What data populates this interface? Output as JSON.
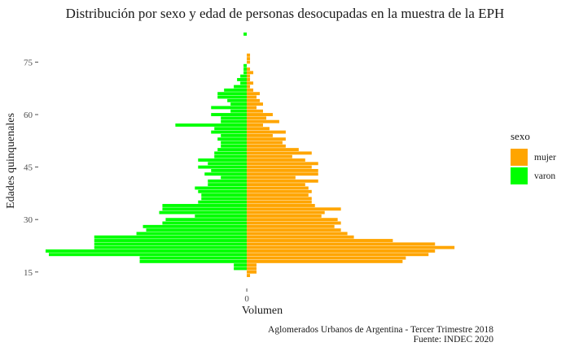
{
  "chart_data": {
    "type": "bar",
    "orientation": "horizontal-population-pyramid",
    "title": "Distribución por sexo y edad de personas desocupadas en la muestra de la EPH",
    "xlabel": "Volumen",
    "ylabel": "Edades quinquenales",
    "y_ticks": [
      15,
      30,
      45,
      60,
      75
    ],
    "x_ticks": [
      0
    ],
    "x_tick_labels": [
      "0"
    ],
    "ylim": [
      11,
      83
    ],
    "xlim": [
      -64,
      74
    ],
    "grid": false,
    "legend_position": "right",
    "legend_title": "sexo",
    "series": [
      {
        "name": "mujer",
        "color": "#FFA500",
        "points": [
          [
            14,
            1
          ],
          [
            15,
            3
          ],
          [
            16,
            3
          ],
          [
            17,
            3
          ],
          [
            18,
            48
          ],
          [
            19,
            49
          ],
          [
            20,
            56
          ],
          [
            21,
            58
          ],
          [
            22,
            64
          ],
          [
            23,
            58
          ],
          [
            24,
            45
          ],
          [
            25,
            33
          ],
          [
            26,
            31
          ],
          [
            27,
            29
          ],
          [
            28,
            27
          ],
          [
            29,
            29
          ],
          [
            30,
            28
          ],
          [
            31,
            23
          ],
          [
            32,
            24
          ],
          [
            33,
            29
          ],
          [
            34,
            21
          ],
          [
            35,
            20
          ],
          [
            36,
            20
          ],
          [
            37,
            19
          ],
          [
            38,
            20
          ],
          [
            39,
            19
          ],
          [
            40,
            18
          ],
          [
            41,
            22
          ],
          [
            42,
            15
          ],
          [
            43,
            22
          ],
          [
            44,
            22
          ],
          [
            45,
            20
          ],
          [
            46,
            22
          ],
          [
            47,
            18
          ],
          [
            48,
            14
          ],
          [
            49,
            20
          ],
          [
            50,
            16
          ],
          [
            51,
            12
          ],
          [
            52,
            11
          ],
          [
            53,
            12
          ],
          [
            54,
            8
          ],
          [
            55,
            12
          ],
          [
            56,
            7
          ],
          [
            57,
            5
          ],
          [
            58,
            10
          ],
          [
            59,
            6
          ],
          [
            60,
            8
          ],
          [
            61,
            5
          ],
          [
            62,
            3
          ],
          [
            63,
            5
          ],
          [
            64,
            4
          ],
          [
            65,
            3
          ],
          [
            66,
            4
          ],
          [
            67,
            2
          ],
          [
            68,
            1
          ],
          [
            69,
            2
          ],
          [
            70,
            1
          ],
          [
            71,
            1
          ],
          [
            72,
            2
          ],
          [
            73,
            1
          ],
          [
            75,
            1
          ],
          [
            76,
            1
          ],
          [
            77,
            1
          ]
        ]
      },
      {
        "name": "varon",
        "color": "#00FF00",
        "points": [
          [
            16,
            4
          ],
          [
            17,
            4
          ],
          [
            18,
            33
          ],
          [
            19,
            33
          ],
          [
            20,
            61
          ],
          [
            21,
            62
          ],
          [
            22,
            47
          ],
          [
            23,
            47
          ],
          [
            24,
            47
          ],
          [
            25,
            47
          ],
          [
            26,
            34
          ],
          [
            27,
            31
          ],
          [
            28,
            32
          ],
          [
            29,
            26
          ],
          [
            30,
            25
          ],
          [
            31,
            16
          ],
          [
            32,
            27
          ],
          [
            33,
            26
          ],
          [
            34,
            26
          ],
          [
            35,
            15
          ],
          [
            36,
            14
          ],
          [
            37,
            14
          ],
          [
            38,
            15
          ],
          [
            39,
            16
          ],
          [
            40,
            12
          ],
          [
            41,
            12
          ],
          [
            42,
            8
          ],
          [
            43,
            13
          ],
          [
            44,
            11
          ],
          [
            45,
            15
          ],
          [
            46,
            12
          ],
          [
            47,
            15
          ],
          [
            48,
            10
          ],
          [
            49,
            10
          ],
          [
            50,
            9
          ],
          [
            51,
            8
          ],
          [
            52,
            8
          ],
          [
            53,
            9
          ],
          [
            54,
            8
          ],
          [
            55,
            11
          ],
          [
            56,
            10
          ],
          [
            57,
            22
          ],
          [
            58,
            8
          ],
          [
            59,
            8
          ],
          [
            60,
            11
          ],
          [
            61,
            5
          ],
          [
            62,
            11
          ],
          [
            63,
            5
          ],
          [
            64,
            6
          ],
          [
            65,
            9
          ],
          [
            66,
            9
          ],
          [
            67,
            7
          ],
          [
            68,
            4
          ],
          [
            69,
            2
          ],
          [
            70,
            3
          ],
          [
            71,
            2
          ],
          [
            72,
            1
          ],
          [
            73,
            1
          ],
          [
            74,
            1
          ],
          [
            83,
            1
          ]
        ]
      }
    ]
  },
  "caption": {
    "line1": "Aglomerados Urbanos de Argentina - Tercer Trimestre 2018",
    "line2": "Fuente: INDEC 2020"
  }
}
